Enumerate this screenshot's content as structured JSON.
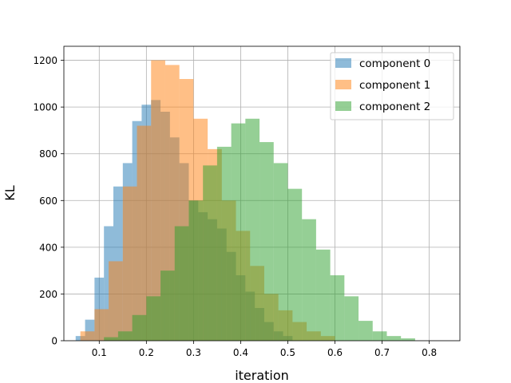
{
  "chart_data": {
    "type": "histogram",
    "title": "",
    "xlabel": "iteration",
    "ylabel": "KL",
    "xlim": [
      0.025,
      0.865
    ],
    "ylim": [
      0,
      1260
    ],
    "xticks": [
      0.1,
      0.2,
      0.3,
      0.4,
      0.5,
      0.6,
      0.7,
      0.8
    ],
    "yticks": [
      0,
      200,
      400,
      600,
      800,
      1000,
      1200
    ],
    "grid": true,
    "legend_position": "top-right",
    "series": [
      {
        "name": "component 0",
        "color": "#1f77b4",
        "opacity": 0.5,
        "bin_start": 0.05,
        "bin_width": 0.02,
        "counts": [
          20,
          90,
          270,
          490,
          660,
          760,
          940,
          1010,
          1030,
          980,
          870,
          760,
          600,
          550,
          520,
          480,
          380,
          280,
          210,
          140,
          80,
          40,
          20
        ]
      },
      {
        "name": "component 1",
        "color": "#ff7f0e",
        "opacity": 0.5,
        "bin_start": 0.06,
        "bin_width": 0.03,
        "counts": [
          40,
          135,
          340,
          660,
          920,
          1200,
          1180,
          1120,
          950,
          820,
          600,
          470,
          320,
          200,
          130,
          80,
          40,
          20
        ]
      },
      {
        "name": "component 2",
        "color": "#2ca02c",
        "opacity": 0.5,
        "bin_start": 0.11,
        "bin_width": 0.03,
        "counts": [
          15,
          40,
          110,
          190,
          300,
          490,
          600,
          750,
          830,
          930,
          950,
          850,
          760,
          650,
          520,
          390,
          280,
          190,
          85,
          40,
          20,
          10
        ]
      }
    ]
  }
}
